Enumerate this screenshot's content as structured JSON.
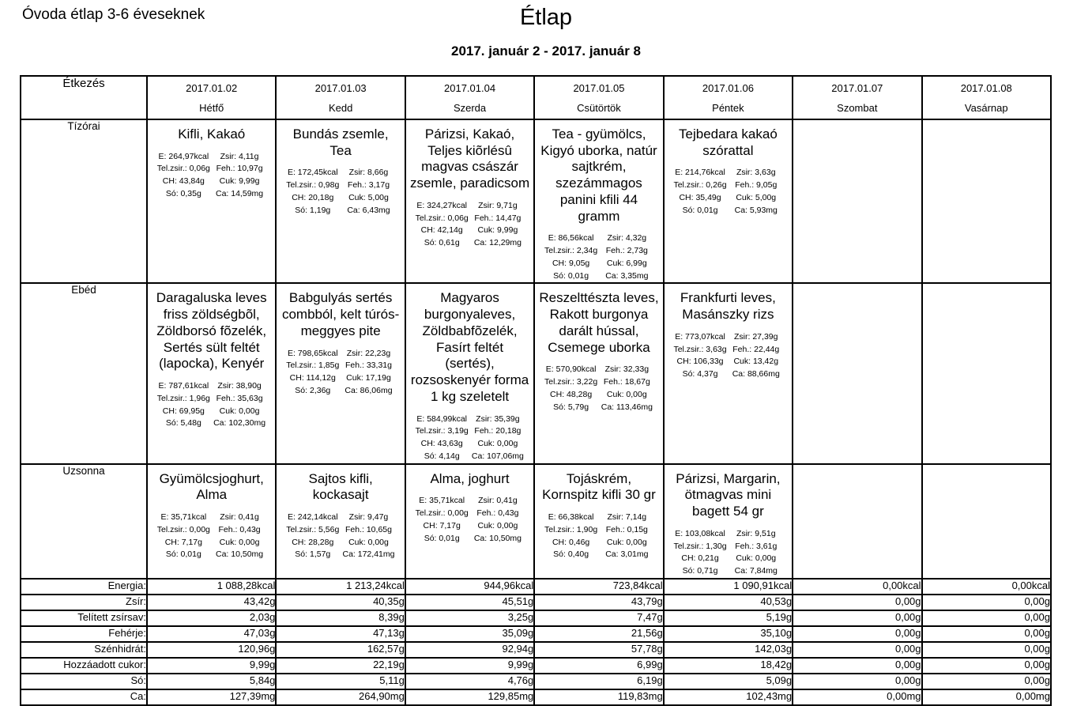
{
  "page": {
    "left_title": "Óvoda étlap 3-6 éveseknek",
    "title": "Étlap",
    "subtitle": "2017. január 2 - 2017. január 8"
  },
  "table": {
    "corner_label": "Étkezés",
    "days": [
      {
        "date": "2017.01.02",
        "name": "Hétfő"
      },
      {
        "date": "2017.01.03",
        "name": "Kedd"
      },
      {
        "date": "2017.01.04",
        "name": "Szerda"
      },
      {
        "date": "2017.01.05",
        "name": "Csütörtök"
      },
      {
        "date": "2017.01.06",
        "name": "Péntek"
      },
      {
        "date": "2017.01.07",
        "name": "Szombat"
      },
      {
        "date": "2017.01.08",
        "name": "Vasárnap"
      }
    ],
    "meal_rows": [
      {
        "label": "Tízórai",
        "row_key": "tizorai",
        "cells": [
          {
            "menu": "Kifli, Kakaó",
            "nutrition": [
              "E: 264,97kcal",
              "Zsir: 4,11g",
              "Tel.zsir.: 0,06g",
              "Feh.: 10,97g",
              "CH: 43,84g",
              "Cuk: 9,99g",
              "Só: 0,35g",
              "Ca: 14,59mg"
            ]
          },
          {
            "menu": "Bundás zsemle, Tea",
            "nutrition": [
              "E: 172,45kcal",
              "Zsir: 8,66g",
              "Tel.zsir.: 0,98g",
              "Feh.: 3,17g",
              "CH: 20,18g",
              "Cuk: 5,00g",
              "Só: 1,19g",
              "Ca: 6,43mg"
            ]
          },
          {
            "menu": "Párizsi, Kakaó, Teljes kiõrlésû magvas császár zsemle, paradicsom",
            "nutrition": [
              "E: 324,27kcal",
              "Zsir: 9,71g",
              "Tel.zsir.: 0,06g",
              "Feh.: 14,47g",
              "CH: 42,14g",
              "Cuk: 9,99g",
              "Só: 0,61g",
              "Ca: 12,29mg"
            ]
          },
          {
            "menu": "Tea - gyümölcs, Kigyó uborka, natúr sajtkrém, szezámmagos panini kfili 44 gramm",
            "nutrition": [
              "E: 86,56kcal",
              "Zsir: 4,32g",
              "Tel.zsir.: 2,34g",
              "Feh.: 2,73g",
              "CH: 9,05g",
              "Cuk: 6,99g",
              "Só: 0,01g",
              "Ca: 3,35mg"
            ]
          },
          {
            "menu": "Tejbedara kakaó szórattal",
            "nutrition": [
              "E: 214,76kcal",
              "Zsir: 3,63g",
              "Tel.zsir.: 0,26g",
              "Feh.: 9,05g",
              "CH: 35,49g",
              "Cuk: 5,00g",
              "Só: 0,01g",
              "Ca: 5,93mg"
            ]
          },
          null,
          null
        ]
      },
      {
        "label": "Ebéd",
        "row_key": "ebed",
        "cells": [
          {
            "menu": "Daragaluska leves friss zöldségbõl, Zöldborsó fõzelék, Sertés sült feltét (lapocka), Kenyér",
            "nutrition": [
              "E: 787,61kcal",
              "Zsir: 38,90g",
              "Tel.zsir.: 1,96g",
              "Feh.: 35,63g",
              "CH: 69,95g",
              "Cuk: 0,00g",
              "Só: 5,48g",
              "Ca: 102,30mg"
            ]
          },
          {
            "menu": "Babgulyás sertés combból, kelt túrós-meggyes pite",
            "nutrition": [
              "E: 798,65kcal",
              "Zsir: 22,23g",
              "Tel.zsir.: 1,85g",
              "Feh.: 33,31g",
              "CH: 114,12g",
              "Cuk: 17,19g",
              "Só: 2,36g",
              "Ca: 86,06mg"
            ]
          },
          {
            "menu": "Magyaros burgonyaleves, Zöldbabfõzelék, Fasírt feltét (sertés), rozsoskenyér forma 1 kg szeletelt",
            "nutrition": [
              "E: 584,99kcal",
              "Zsir: 35,39g",
              "Tel.zsir.: 3,19g",
              "Feh.: 20,18g",
              "CH: 43,63g",
              "Cuk: 0,00g",
              "Só: 4,14g",
              "Ca: 107,06mg"
            ]
          },
          {
            "menu": "Reszelttészta leves, Rakott burgonya darált hússal, Csemege uborka",
            "nutrition": [
              "E: 570,90kcal",
              "Zsir: 32,33g",
              "Tel.zsir.: 3,22g",
              "Feh.: 18,67g",
              "CH: 48,28g",
              "Cuk: 0,00g",
              "Só: 5,79g",
              "Ca: 113,46mg"
            ]
          },
          {
            "menu": "Frankfurti leves, Masánszky rizs",
            "nutrition": [
              "E: 773,07kcal",
              "Zsir: 27,39g",
              "Tel.zsir.: 3,63g",
              "Feh.: 22,44g",
              "CH: 106,33g",
              "Cuk: 13,42g",
              "Só: 4,37g",
              "Ca: 88,66mg"
            ]
          },
          null,
          null
        ]
      },
      {
        "label": "Uzsonna",
        "row_key": "uzsonna",
        "cells": [
          {
            "menu": "Gyümölcsjoghurt, Alma",
            "nutrition": [
              "E: 35,71kcal",
              "Zsir: 0,41g",
              "Tel.zsir.: 0,00g",
              "Feh.: 0,43g",
              "CH: 7,17g",
              "Cuk: 0,00g",
              "Só: 0,01g",
              "Ca: 10,50mg"
            ]
          },
          {
            "menu": "Sajtos kifli, kockasajt",
            "nutrition": [
              "E: 242,14kcal",
              "Zsir: 9,47g",
              "Tel.zsir.: 5,56g",
              "Feh.: 10,65g",
              "CH: 28,28g",
              "Cuk: 0,00g",
              "Só: 1,57g",
              "Ca: 172,41mg"
            ]
          },
          {
            "menu": "Alma, joghurt",
            "nutrition": [
              "E: 35,71kcal",
              "Zsir: 0,41g",
              "Tel.zsir.: 0,00g",
              "Feh.: 0,43g",
              "CH: 7,17g",
              "Cuk: 0,00g",
              "Só: 0,01g",
              "Ca: 10,50mg"
            ]
          },
          {
            "menu": "Tojáskrém, Kornspitz kifli 30 gr",
            "nutrition": [
              "E: 66,38kcal",
              "Zsir: 7,14g",
              "Tel.zsir.: 1,90g",
              "Feh.: 0,15g",
              "CH: 0,46g",
              "Cuk: 0,00g",
              "Só: 0,40g",
              "Ca: 3,01mg"
            ]
          },
          {
            "menu": "Párizsi, Margarin, ötmagvas mini bagett 54 gr",
            "nutrition": [
              "E: 103,08kcal",
              "Zsir: 9,51g",
              "Tel.zsir.: 1,30g",
              "Feh.: 3,61g",
              "CH: 0,21g",
              "Cuk: 0,00g",
              "Só: 0,71g",
              "Ca: 7,84mg"
            ]
          },
          null,
          null
        ]
      }
    ],
    "summary_rows": [
      {
        "label": "Energia:",
        "values": [
          "1 088,28kcal",
          "1 213,24kcal",
          "944,96kcal",
          "723,84kcal",
          "1 090,91kcal",
          "0,00kcal",
          "0,00kcal"
        ]
      },
      {
        "label": "Zsír:",
        "values": [
          "43,42g",
          "40,35g",
          "45,51g",
          "43,79g",
          "40,53g",
          "0,00g",
          "0,00g"
        ]
      },
      {
        "label": "Telített zsírsav:",
        "values": [
          "2,03g",
          "8,39g",
          "3,25g",
          "7,47g",
          "5,19g",
          "0,00g",
          "0,00g"
        ]
      },
      {
        "label": "Fehérje:",
        "values": [
          "47,03g",
          "47,13g",
          "35,09g",
          "21,56g",
          "35,10g",
          "0,00g",
          "0,00g"
        ]
      },
      {
        "label": "Szénhidrát:",
        "values": [
          "120,96g",
          "162,57g",
          "92,94g",
          "57,78g",
          "142,03g",
          "0,00g",
          "0,00g"
        ]
      },
      {
        "label": "Hozzáadott cukor:",
        "values": [
          "9,99g",
          "22,19g",
          "9,99g",
          "6,99g",
          "18,42g",
          "0,00g",
          "0,00g"
        ]
      },
      {
        "label": "Só:",
        "values": [
          "5,84g",
          "5,11g",
          "4,76g",
          "6,19g",
          "5,09g",
          "0,00g",
          "0,00g"
        ]
      },
      {
        "label": "Ca:",
        "values": [
          "127,39mg",
          "264,90mg",
          "129,85mg",
          "119,83mg",
          "102,43mg",
          "0,00mg",
          "0,00mg"
        ]
      }
    ]
  }
}
